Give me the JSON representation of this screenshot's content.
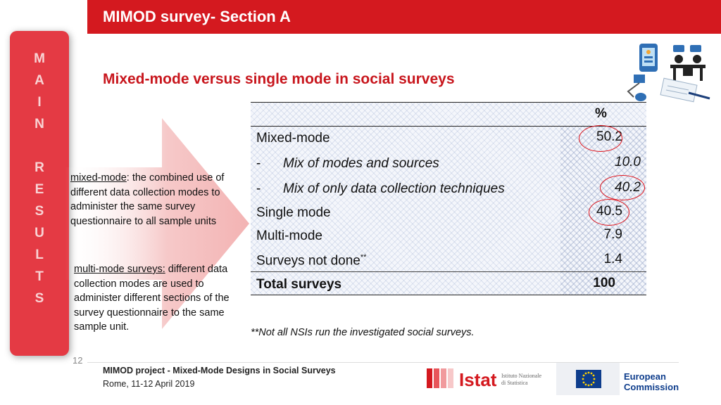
{
  "header": {
    "title": "MIMOD survey- Section A"
  },
  "sidebar": {
    "letters": [
      "M",
      "A",
      "I",
      "N",
      "",
      "R",
      "E",
      "S",
      "U",
      "L",
      "T",
      "S"
    ]
  },
  "subtitle": "Mixed-mode versus single mode in social surveys",
  "definitions": {
    "mixed_term": "mixed-mode",
    "mixed_rest": ": the combined use of different data collection modes to administer the same survey questionnaire to all sample units",
    "multi_term": "multi-mode surveys:",
    "multi_rest": " different data collection modes are used to administer different sections of the survey questionnaire to the same sample unit."
  },
  "table": {
    "header_pct": "%",
    "rows": [
      {
        "label": "Mixed-mode",
        "value": "50.2"
      },
      {
        "dash": "-",
        "label": "Mix of modes and sources",
        "value": "10.0"
      },
      {
        "dash": "-",
        "label": "Mix of only data collection techniques",
        "value": "40.2"
      },
      {
        "label": "Single mode",
        "value": "40.5"
      },
      {
        "label": "Multi-mode",
        "value": "7.9"
      },
      {
        "label": "Surveys not done",
        "sup": "**",
        "value": "1.4"
      },
      {
        "label": "Total surveys",
        "value": "100"
      }
    ]
  },
  "note": "**Not all NSIs run the investigated social surveys.",
  "footer": {
    "page_number": "12",
    "project": "MIMOD project - Mixed-Mode Designs in Social Surveys",
    "date": "Rome, 11-12 April 2019",
    "istat_name": "Istat",
    "istat_sub_1": "Istituto Nazionale",
    "istat_sub_2": "di Statistica",
    "ec_line1": "European",
    "ec_line2": "Commission"
  },
  "colors": {
    "brand_red": "#d4191f",
    "sidebar_red": "#e43a44",
    "ec_blue": "#0e3d8c"
  },
  "icons": [
    "survey-modes-illustration-icon",
    "istat-logo-icon",
    "eu-flag-icon"
  ]
}
